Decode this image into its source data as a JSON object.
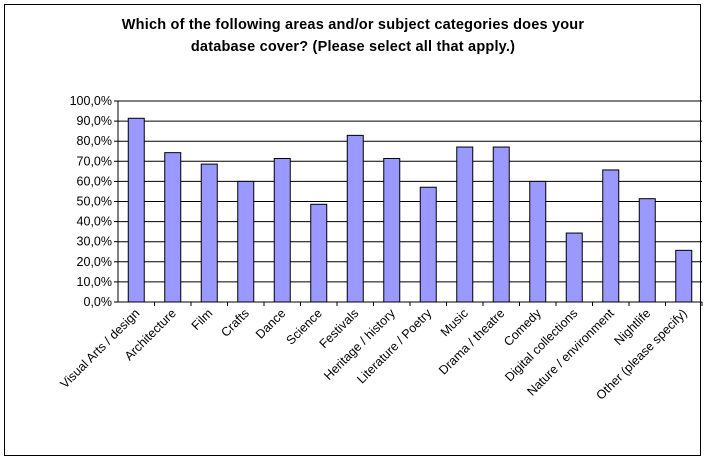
{
  "chart_data": {
    "type": "bar",
    "title": "Which of the following areas and/or subject categories does your\ndatabase cover? (Please select all that apply.)",
    "xlabel": "",
    "ylabel": "",
    "ylim": [
      0,
      100
    ],
    "y_ticks": [
      "0,0%",
      "10,0%",
      "20,0%",
      "30,0%",
      "40,0%",
      "50,0%",
      "60,0%",
      "70,0%",
      "80,0%",
      "90,0%",
      "100,0%"
    ],
    "grid": true,
    "legend": "none",
    "bar_color": "#9999FF",
    "categories": [
      "Visual Arts / design",
      "Architecture",
      "Film",
      "Crafts",
      "Dance",
      "Science",
      "Festivals",
      "Heritage / history",
      "Literature / Poetry",
      "Music",
      "Drama / theatre",
      "Comedy",
      "Digital collections",
      "Nature / environment",
      "Nightlife",
      "Other (please specify)"
    ],
    "values": [
      91.4,
      74.3,
      68.6,
      60.0,
      71.4,
      48.6,
      82.9,
      71.4,
      57.1,
      77.1,
      77.1,
      60.0,
      34.3,
      65.7,
      51.4,
      25.7
    ]
  }
}
